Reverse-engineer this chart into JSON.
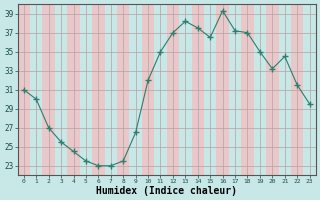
{
  "x": [
    0,
    1,
    2,
    3,
    4,
    5,
    6,
    7,
    8,
    9,
    10,
    11,
    12,
    13,
    14,
    15,
    16,
    17,
    18,
    19,
    20,
    21,
    22,
    23
  ],
  "y": [
    31,
    30,
    27,
    25.5,
    24.5,
    23.5,
    23,
    23,
    23.5,
    26.5,
    32,
    35,
    37,
    38.2,
    37.5,
    36.5,
    39.3,
    37.2,
    37,
    35,
    33.2,
    34.5,
    31.5,
    29.5
  ],
  "line_color": "#2e7d6e",
  "marker": "+",
  "marker_size": 4,
  "bg_color": "#c8e8e8",
  "grid_color_major": "#d4b8b8",
  "grid_color_minor": "#c8e8e8",
  "xlabel": "Humidex (Indice chaleur)",
  "xlabel_fontsize": 7,
  "ylabel_ticks": [
    23,
    25,
    27,
    29,
    31,
    33,
    35,
    37,
    39
  ],
  "xlim": [
    -0.5,
    23.5
  ],
  "ylim": [
    22.0,
    40.0
  ]
}
